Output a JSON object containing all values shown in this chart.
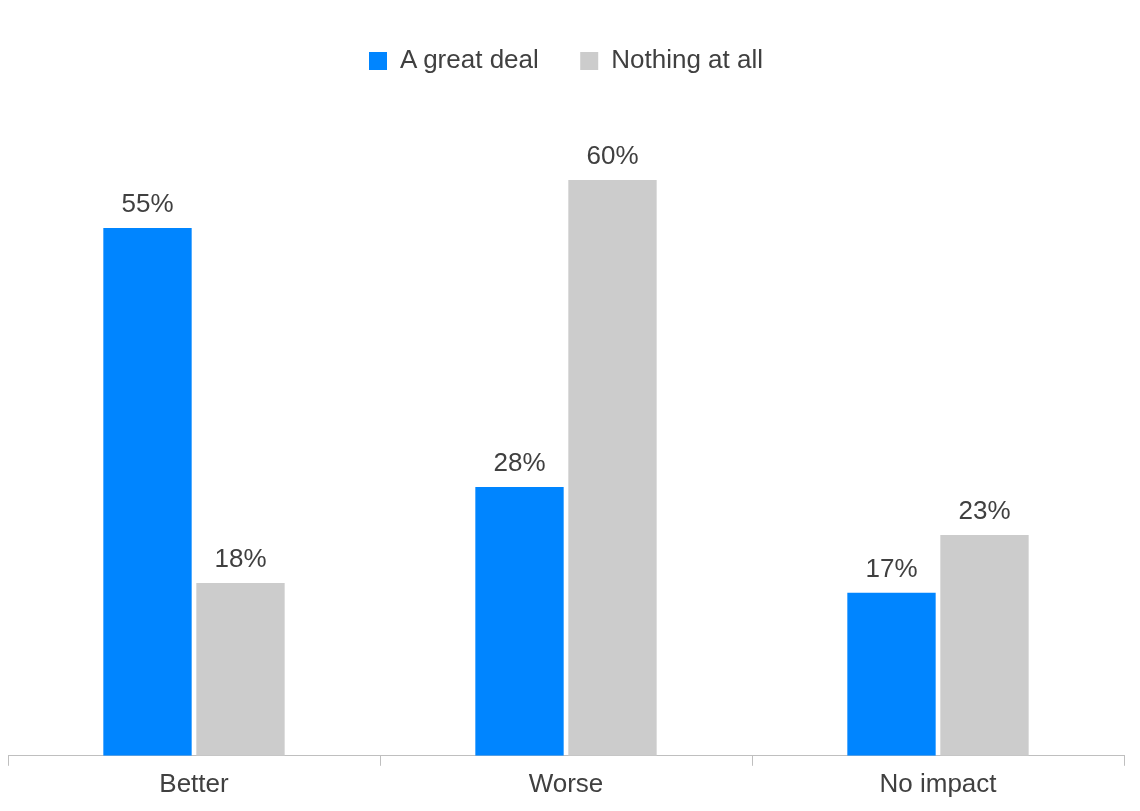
{
  "chart_data": {
    "type": "bar",
    "categories": [
      "Better",
      "Worse",
      "No impact"
    ],
    "series": [
      {
        "name": "A great deal",
        "color": "#0085ff",
        "values": [
          55,
          28,
          17
        ],
        "value_labels": [
          "55%",
          "28%",
          "17%"
        ]
      },
      {
        "name": "Nothing at all",
        "color": "#cccccc",
        "values": [
          18,
          60,
          23
        ],
        "value_labels": [
          "18%",
          "60%",
          "23%"
        ]
      }
    ],
    "legend": "top",
    "grid": false,
    "tick_labels": "x"
  }
}
